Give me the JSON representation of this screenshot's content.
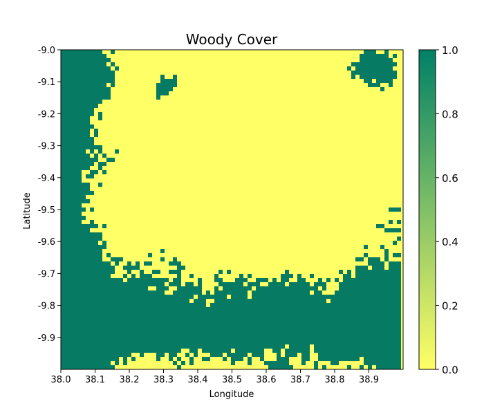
{
  "figure": {
    "title": "Woody Cover",
    "xlabel": "Longitude",
    "ylabel": "Latitude"
  },
  "chart_data": {
    "type": "heatmap",
    "title": "Woody Cover",
    "xlabel": "Longitude",
    "ylabel": "Latitude",
    "xlim": [
      38.0,
      39.0
    ],
    "ylim": [
      -10.0,
      -9.0
    ],
    "x_ticks": [
      "38.0",
      "38.1",
      "38.2",
      "38.3",
      "38.4",
      "38.5",
      "38.6",
      "38.7",
      "38.8",
      "38.9"
    ],
    "y_ticks": [
      "-9.0",
      "-9.1",
      "-9.2",
      "-9.3",
      "-9.4",
      "-9.5",
      "-9.6",
      "-9.7",
      "-9.8",
      "-9.9"
    ],
    "colorbar": {
      "min": 0.0,
      "max": 1.0,
      "ticks": [
        "0.0",
        "0.2",
        "0.4",
        "0.6",
        "0.8",
        "1.0"
      ],
      "colormap": "summer_r",
      "color_min": "#ffff66",
      "color_max": "#008066"
    },
    "colors": {
      "low": "#ffff66",
      "high": "#077a63"
    }
  }
}
